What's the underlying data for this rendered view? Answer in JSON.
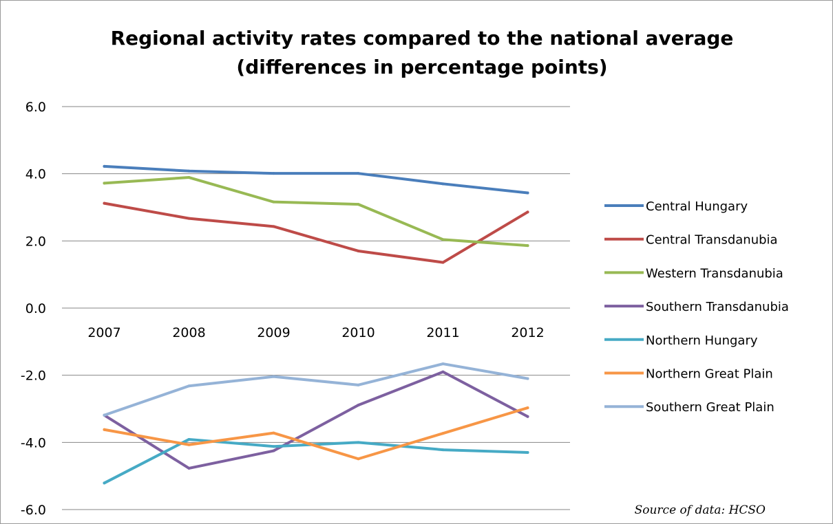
{
  "chart_data": {
    "type": "line",
    "title_line1": "Regional activity rates compared to the national average",
    "title_line2": "(differences in percentage points)",
    "categories": [
      "2007",
      "2008",
      "2009",
      "2010",
      "2011",
      "2012"
    ],
    "ylim": [
      -6,
      6
    ],
    "yticks": [
      {
        "value": 6,
        "label": "6.0"
      },
      {
        "value": 4,
        "label": "4.0"
      },
      {
        "value": 2,
        "label": "2.0"
      },
      {
        "value": 0,
        "label": "0.0"
      },
      {
        "value": -2,
        "label": "-2.0"
      },
      {
        "value": -4,
        "label": "-4.0"
      },
      {
        "value": -6,
        "label": "-6.0"
      }
    ],
    "grid": true,
    "legend_position": "right",
    "series": [
      {
        "name": "Central Hungary",
        "color": "#4a7ebb",
        "values": [
          4.22,
          4.08,
          4.01,
          4.01,
          3.7,
          3.43
        ]
      },
      {
        "name": "Central Transdanubia",
        "color": "#be4b48",
        "values": [
          3.12,
          2.67,
          2.43,
          1.7,
          1.36,
          2.86
        ]
      },
      {
        "name": "Western Transdanubia",
        "color": "#98b954",
        "values": [
          3.72,
          3.89,
          3.16,
          3.09,
          2.04,
          1.86
        ]
      },
      {
        "name": "Southern Transdanubia",
        "color": "#7d60a0",
        "values": [
          -3.19,
          -4.77,
          -4.25,
          -2.89,
          -1.9,
          -3.23
        ]
      },
      {
        "name": "Northern Hungary",
        "color": "#46aac5",
        "values": [
          -5.21,
          -3.91,
          -4.12,
          -4.0,
          -4.22,
          -4.3
        ]
      },
      {
        "name": "Northern Great Plain",
        "color": "#f79646",
        "values": [
          -3.62,
          -4.07,
          -3.72,
          -4.49,
          -3.73,
          -2.97
        ]
      },
      {
        "name": "Southern Great Plain",
        "color": "#95b3d7",
        "values": [
          -3.19,
          -2.32,
          -2.04,
          -2.29,
          -1.66,
          -2.1
        ]
      }
    ],
    "source": "Source of data: HCSO"
  }
}
